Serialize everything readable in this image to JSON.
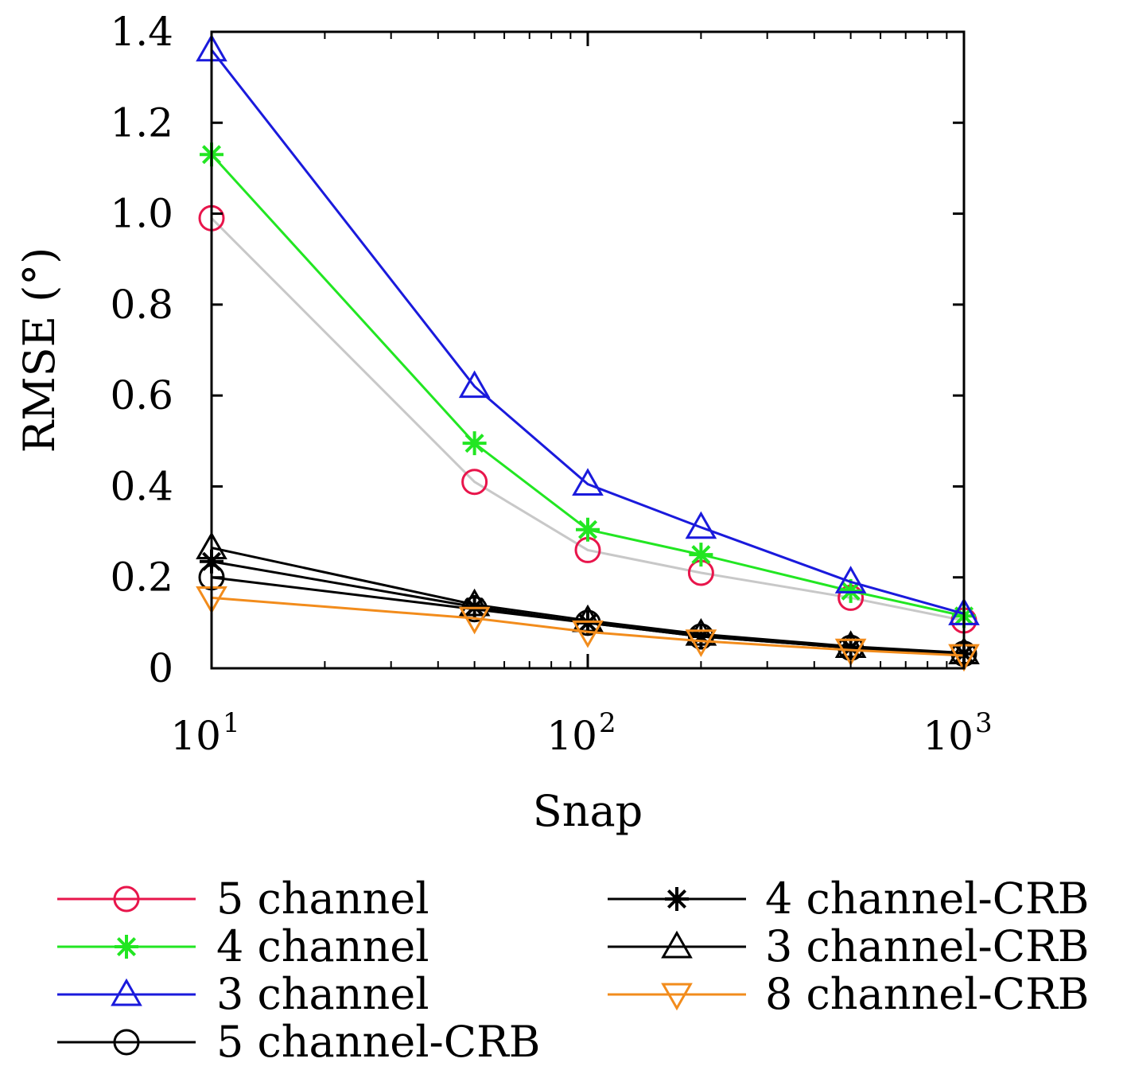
{
  "chart_data": {
    "type": "line",
    "title": "",
    "xlabel": "Snap",
    "ylabel": "RMSE (°)",
    "xscale": "log",
    "xlim": [
      10,
      1000
    ],
    "ylim": [
      0,
      1.4
    ],
    "yticks": [
      0,
      0.2,
      0.4,
      0.6,
      0.8,
      1.0,
      1.2,
      1.4
    ],
    "ytick_labels": [
      "0",
      "0.2",
      "0.4",
      "0.6",
      "0.8",
      "1.0",
      "1.2",
      "1.4"
    ],
    "xticks": [
      {
        "value": 10,
        "base": "10",
        "exp": "1"
      },
      {
        "value": 100,
        "base": "10",
        "exp": "2"
      },
      {
        "value": 1000,
        "base": "10",
        "exp": "3"
      }
    ],
    "grid": false,
    "legend_position": "bottom",
    "x": [
      10,
      50,
      100,
      200,
      500,
      1000
    ],
    "series": [
      {
        "name": "5 channel",
        "color": "#e8154b",
        "line_color": "#c8c8c8",
        "marker": "circle",
        "values": [
          0.99,
          0.41,
          0.26,
          0.21,
          0.155,
          0.105
        ]
      },
      {
        "name": "4 channel",
        "color": "#22e622",
        "marker": "star",
        "values": [
          1.13,
          0.495,
          0.305,
          0.25,
          0.17,
          0.115
        ]
      },
      {
        "name": "3 channel",
        "color": "#1a1adc",
        "marker": "triangle-up",
        "values": [
          1.36,
          0.62,
          0.405,
          0.31,
          0.19,
          0.12
        ]
      },
      {
        "name": "5 channel-CRB",
        "color": "#000000",
        "marker": "circle",
        "values": [
          0.2,
          0.13,
          0.1,
          0.07,
          0.045,
          0.032
        ]
      },
      {
        "name": "4 channel-CRB",
        "color": "#000000",
        "marker": "star",
        "values": [
          0.235,
          0.135,
          0.1,
          0.07,
          0.045,
          0.032
        ]
      },
      {
        "name": "3 channel-CRB",
        "color": "#000000",
        "marker": "triangle-up",
        "values": [
          0.265,
          0.14,
          0.105,
          0.075,
          0.048,
          0.034
        ]
      },
      {
        "name": "8 channel-CRB",
        "color": "#f28c1c",
        "marker": "triangle-down",
        "values": [
          0.155,
          0.11,
          0.08,
          0.06,
          0.04,
          0.028
        ]
      }
    ]
  }
}
